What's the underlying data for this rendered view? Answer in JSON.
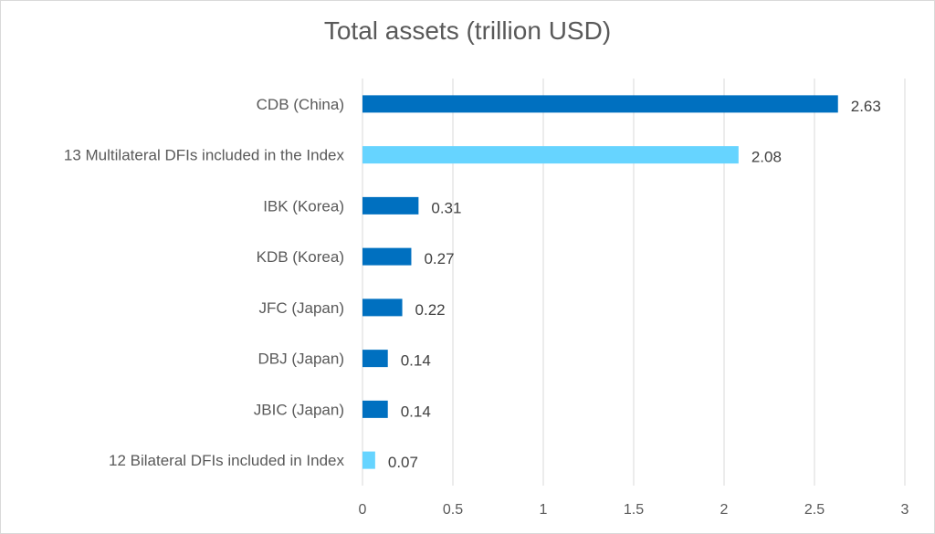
{
  "chart_data": {
    "type": "bar",
    "orientation": "horizontal",
    "title": "Total assets (trillion USD)",
    "categories": [
      "CDB (China)",
      "13 Multilateral DFIs included in the Index",
      "IBK (Korea)",
      "KDB (Korea)",
      "JFC (Japan)",
      "DBJ (Japan)",
      "JBIC (Japan)",
      "12 Bilateral DFIs included in Index"
    ],
    "values": [
      2.63,
      2.08,
      0.31,
      0.27,
      0.22,
      0.14,
      0.14,
      0.07
    ],
    "data_labels": [
      "2.63",
      "2.08",
      "0.31",
      "0.27",
      "0.22",
      "0.14",
      "0.14",
      "0.07"
    ],
    "bar_colors": [
      "#0070C0",
      "#66D4FF",
      "#0070C0",
      "#0070C0",
      "#0070C0",
      "#0070C0",
      "#0070C0",
      "#66D4FF"
    ],
    "xlim": [
      0,
      3
    ],
    "xticks": [
      "0",
      "0.5",
      "1",
      "1.5",
      "2",
      "2.5",
      "3"
    ],
    "grid": true,
    "legend": "none"
  }
}
